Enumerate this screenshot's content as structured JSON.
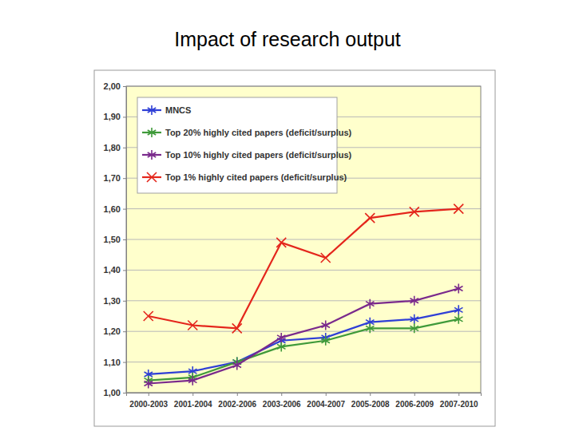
{
  "chart_data": {
    "type": "line",
    "title": "Impact of research output",
    "categories": [
      "2000-2003",
      "2001-2004",
      "2002-2006",
      "2003-2006",
      "2004-2007",
      "2005-2008",
      "2006-2009",
      "2007-2010"
    ],
    "series": [
      {
        "name": "MNCS",
        "color": "#2f3fd6",
        "marker": "asterisk",
        "values": [
          1.06,
          1.07,
          1.1,
          1.17,
          1.18,
          1.23,
          1.24,
          1.27
        ]
      },
      {
        "name": "Top 20% highly cited papers (deficit/surplus)",
        "color": "#3f9a3a",
        "marker": "asterisk",
        "values": [
          1.04,
          1.05,
          1.1,
          1.15,
          1.17,
          1.21,
          1.21,
          1.24
        ]
      },
      {
        "name": "Top 10% highly cited papers (deficit/surplus)",
        "color": "#7a2a8c",
        "marker": "asterisk",
        "values": [
          1.03,
          1.04,
          1.09,
          1.18,
          1.22,
          1.29,
          1.3,
          1.34
        ]
      },
      {
        "name": "Top 1% highly cited papers (deficit/surplus)",
        "color": "#e4261c",
        "marker": "x",
        "values": [
          1.25,
          1.22,
          1.21,
          1.49,
          1.44,
          1.57,
          1.59,
          1.6
        ]
      }
    ],
    "ylim": [
      1.0,
      2.0
    ],
    "yticks": [
      {
        "value": 1.0,
        "label": "1,00"
      },
      {
        "value": 1.1,
        "label": "1,10"
      },
      {
        "value": 1.2,
        "label": "1,20"
      },
      {
        "value": 1.3,
        "label": "1,30"
      },
      {
        "value": 1.4,
        "label": "1,40"
      },
      {
        "value": 1.5,
        "label": "1,50"
      },
      {
        "value": 1.6,
        "label": "1,60"
      },
      {
        "value": 1.7,
        "label": "1,70"
      },
      {
        "value": 1.8,
        "label": "1,80"
      },
      {
        "value": 1.9,
        "label": "1,90"
      },
      {
        "value": 2.0,
        "label": "2,00"
      }
    ],
    "grid": true,
    "legend": "upper left"
  }
}
